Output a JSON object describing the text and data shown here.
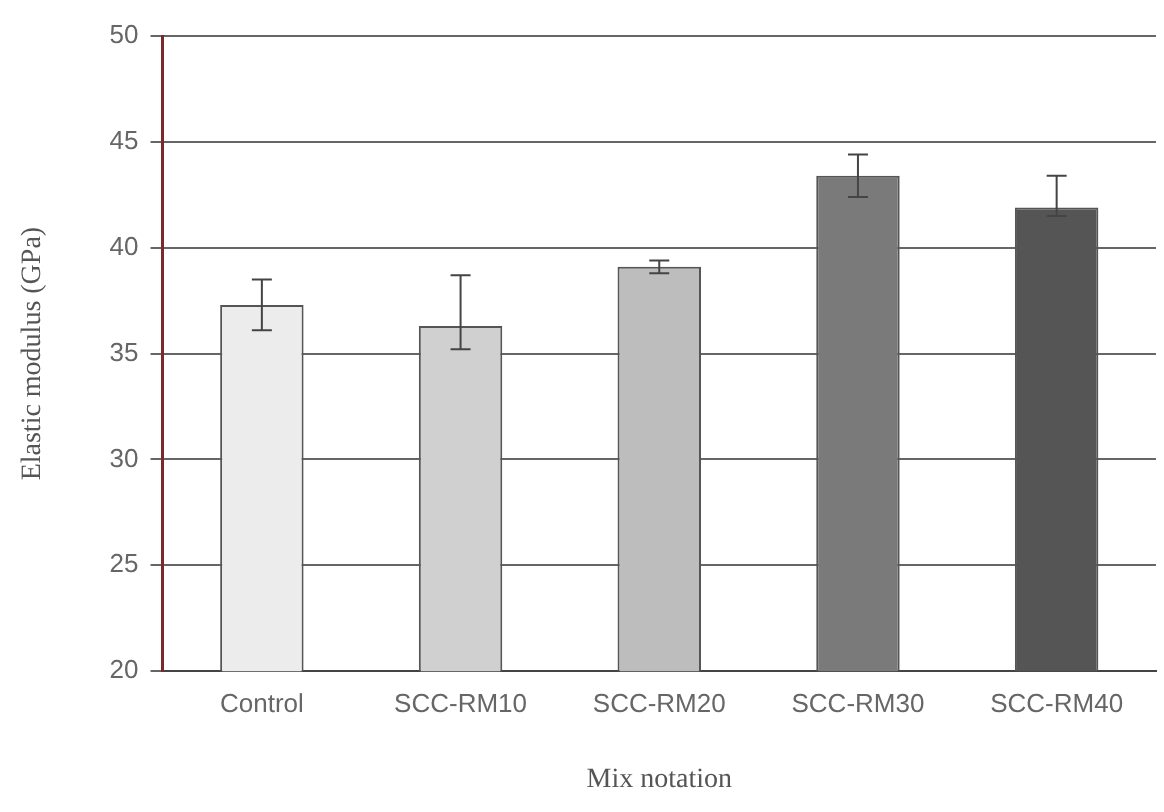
{
  "chart_data": {
    "type": "bar",
    "xlabel": "Mix notation",
    "ylabel": "Elastic modulus (GPa)",
    "categories": [
      "Control",
      "SCC-RM10",
      "SCC-RM20",
      "SCC-RM30",
      "SCC-RM40"
    ],
    "values": [
      37.3,
      36.3,
      39.1,
      43.4,
      41.9
    ],
    "errors": [
      1.2,
      [
        35.2,
        38.7
      ],
      0.3,
      1.0,
      [
        41.5,
        43.4
      ]
    ],
    "colors": [
      "#ececec",
      "#d0d0d0",
      "#bdbdbd",
      "#7a7a7a",
      "#555555"
    ],
    "ylim": [
      20,
      50
    ],
    "yticks": [
      20,
      25,
      30,
      35,
      40,
      45,
      50
    ],
    "grid": "y"
  }
}
